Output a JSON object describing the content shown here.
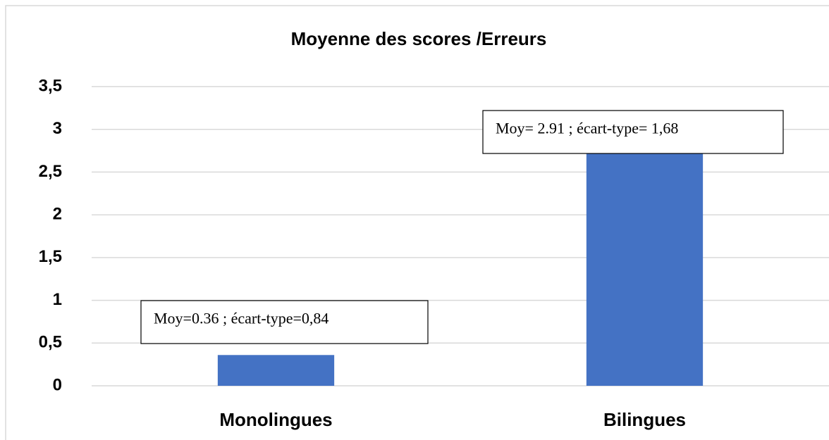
{
  "chart_data": {
    "type": "bar",
    "title": "Moyenne des scores /Erreurs",
    "categories": [
      "Monolingues",
      "Bilingues"
    ],
    "values": [
      0.36,
      2.91
    ],
    "color": "#4472c4",
    "ylim": [
      0,
      3.5
    ],
    "yticks": [
      0,
      {
        "value": 0.5,
        "label": "0,5"
      },
      1,
      {
        "value": 1.5,
        "label": "1,5"
      },
      2,
      {
        "value": 2.5,
        "label": "2,5"
      },
      3,
      {
        "value": 3.5,
        "label": "3,5"
      }
    ],
    "grid": true,
    "annotations": [
      "Moy=0.36 ; écart-type=0,84",
      "Moy= 2.91 ; écart-type= 1,68"
    ]
  }
}
